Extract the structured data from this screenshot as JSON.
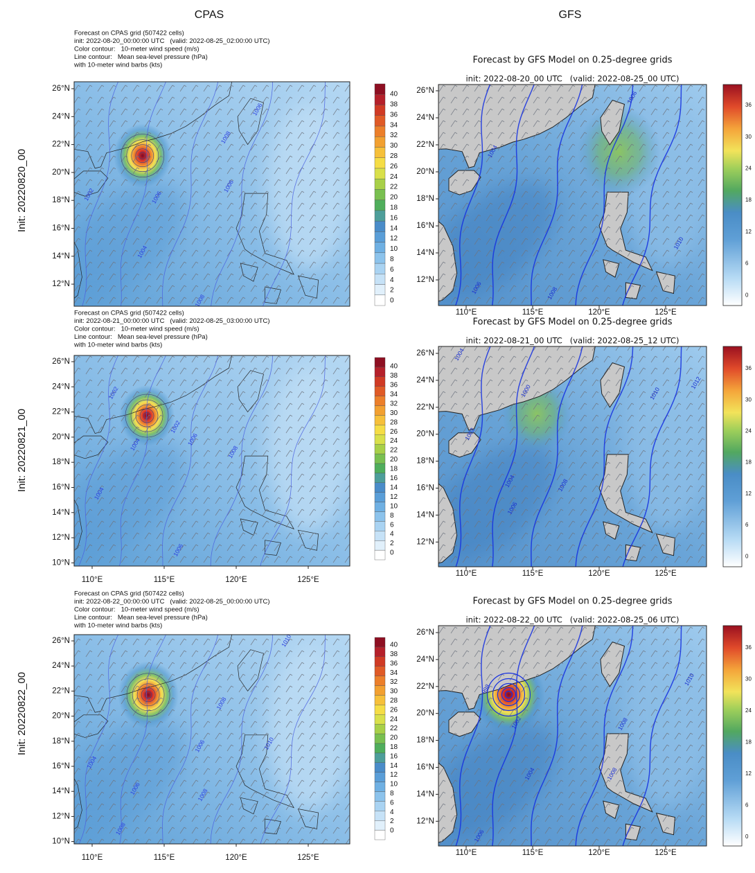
{
  "header": {
    "columns": [
      "CPAS",
      "GFS"
    ]
  },
  "rows": [
    {
      "label": "Init: 20220820_00",
      "cpas": {
        "title_lines": [
          "Forecast on CPAS grid (507422 cells)",
          "init: 2022-08-20_00:00:00 UTC   (valid: 2022-08-25_02:00:00 UTC)",
          "Color contour:   10-meter wind speed (m/s)",
          "Line contour:   Mean sea-level pressure (hPa)",
          "with 10-meter wind barbs (kts)"
        ],
        "yticks": [
          "26°N",
          "24°N",
          "22°N",
          "20°N",
          "18°N",
          "16°N",
          "14°N",
          "12°N"
        ],
        "colorbar": [
          40,
          38,
          36,
          34,
          32,
          30,
          28,
          26,
          24,
          22,
          20,
          18,
          16,
          14,
          12,
          10,
          8,
          6,
          4,
          2,
          0
        ],
        "contour_labels": [
          1006,
          1008,
          1004,
          1002,
          1006,
          1008,
          1006
        ]
      },
      "gfs": {
        "title": "Forecast by GFS Model on 0.25-degree grids",
        "subtitle": "init: 2022-08-20_00 UTC   (valid: 2022-08-25_00 UTC)",
        "yticks": [
          "26°N",
          "24°N",
          "22°N",
          "20°N",
          "18°N",
          "16°N",
          "14°N",
          "12°N"
        ],
        "xticks": [
          "110°E",
          "115°E",
          "120°E",
          "125°E"
        ],
        "colorbar": [
          36,
          30,
          24,
          18,
          12,
          6,
          0
        ],
        "contour_labels": [
          1006,
          1004,
          1006,
          1008,
          1010
        ]
      }
    },
    {
      "label": "Init: 20220821_00",
      "cpas": {
        "title_lines": [
          "Forecast on CPAS grid (507422 cells)",
          "init: 2022-08-21_00:00:00 UTC   (valid: 2022-08-25_03:00:00 UTC)",
          "Color contour:   10-meter wind speed (m/s)",
          "Line contour:   Mean sea-level pressure (hPa)",
          "with 10-meter wind barbs (kts)"
        ],
        "yticks": [
          "26°N",
          "24°N",
          "22°N",
          "20°N",
          "18°N",
          "16°N",
          "14°N",
          "12°N",
          "10°N"
        ],
        "xticks": [
          "110°E",
          "115°E",
          "120°E",
          "125°E"
        ],
        "colorbar": [
          40,
          38,
          36,
          34,
          32,
          30,
          28,
          26,
          24,
          22,
          20,
          18,
          16,
          14,
          12,
          10,
          8,
          6,
          4,
          2,
          0
        ],
        "contour_labels": [
          1002,
          1002,
          1004,
          1006,
          1008,
          1004,
          1006
        ]
      },
      "gfs": {
        "title": "Forecast by GFS Model on 0.25-degree grids",
        "subtitle": "init: 2022-08-21_00 UTC   (valid: 2022-08-25_12 UTC)",
        "yticks": [
          "26°N",
          "24°N",
          "22°N",
          "20°N",
          "18°N",
          "16°N",
          "14°N",
          "12°N"
        ],
        "xticks": [
          "110°E",
          "115°E",
          "120°E",
          "125°E"
        ],
        "colorbar": [
          36,
          30,
          24,
          18,
          12,
          6,
          0
        ],
        "contour_labels": [
          1000,
          1002,
          1004,
          1006,
          1008,
          1010,
          1012,
          1004
        ]
      }
    },
    {
      "label": "Init: 20220822_00",
      "cpas": {
        "title_lines": [
          "Forecast on CPAS grid (507422 cells)",
          "init: 2022-08-22_00:00:00 UTC   (valid: 2022-08-25_00:00:00 UTC)",
          "Color contour:   10-meter wind speed (m/s)",
          "Line contour:   Mean sea-level pressure (hPa)",
          "with 10-meter wind barbs (kts)"
        ],
        "yticks": [
          "26°N",
          "24°N",
          "22°N",
          "20°N",
          "18°N",
          "16°N",
          "14°N",
          "12°N",
          "10°N"
        ],
        "xticks": [
          "110°E",
          "115°E",
          "120°E",
          "125°E"
        ],
        "colorbar": [
          40,
          38,
          36,
          34,
          32,
          30,
          28,
          26,
          24,
          22,
          20,
          18,
          16,
          14,
          12,
          10,
          8,
          6,
          4,
          2,
          0
        ],
        "contour_labels": [
          1004,
          1006,
          1008,
          1006,
          1008,
          1010,
          1010,
          1008
        ]
      },
      "gfs": {
        "title": "Forecast by GFS Model on 0.25-degree grids",
        "subtitle": "init: 2022-08-22_00 UTC   (valid: 2022-08-25_06 UTC)",
        "yticks": [
          "26°N",
          "24°N",
          "22°N",
          "20°N",
          "18°N",
          "16°N",
          "14°N",
          "12°N"
        ],
        "xticks": [
          "110°E",
          "115°E",
          "120°E",
          "125°E"
        ],
        "colorbar": [
          36,
          30,
          24,
          18,
          12,
          6,
          0
        ],
        "contour_labels": [
          998,
          1002,
          1004,
          1006,
          1008,
          1010,
          1008
        ]
      }
    }
  ]
}
